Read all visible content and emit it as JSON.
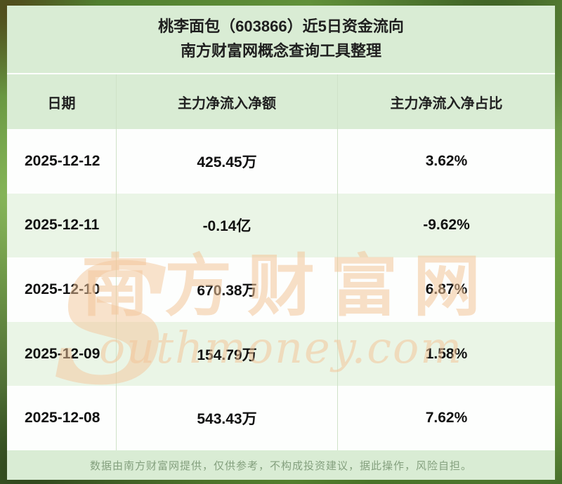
{
  "title": {
    "line1": "桃李面包（603866）近5日资金流向",
    "line2": "南方财富网概念查询工具整理"
  },
  "table": {
    "headers": {
      "date": "日期",
      "amount": "主力净流入净额",
      "ratio": "主力净流入净占比"
    },
    "rows": [
      {
        "date": "2025-12-12",
        "amount": "425.45万",
        "ratio": "3.62%"
      },
      {
        "date": "2025-12-11",
        "amount": "-0.14亿",
        "ratio": "-9.62%"
      },
      {
        "date": "2025-12-10",
        "amount": "670.38万",
        "ratio": "6.87%"
      },
      {
        "date": "2025-12-09",
        "amount": "154.79万",
        "ratio": "1.58%"
      },
      {
        "date": "2025-12-08",
        "amount": "543.43万",
        "ratio": "7.62%"
      }
    ]
  },
  "watermark": {
    "big_letter": "S",
    "cn_text": "南方财富网",
    "en_text": "outhmoney.com"
  },
  "footer": {
    "disclaimer": "数据由南方财富网提供，仅供参考，不构成投资建议，据此操作，风险自担。"
  },
  "colors": {
    "panel_green": "#d9ecd4",
    "row_alt_green": "#eaf5e6",
    "row_white": "#fdfefd",
    "watermark_orange": "#f3c599",
    "background_green": "#74a546",
    "footer_text": "#84a07e",
    "text_dark": "#111111"
  },
  "chart_data": {
    "type": "table",
    "title": "桃李面包（603866）近5日资金流向",
    "subtitle": "南方财富网概念查询工具整理",
    "columns": [
      "日期",
      "主力净流入净额",
      "主力净流入净占比"
    ],
    "rows": [
      [
        "2025-12-12",
        "425.45万",
        "3.62%"
      ],
      [
        "2025-12-11",
        "-0.14亿",
        "-9.62%"
      ],
      [
        "2025-12-10",
        "670.38万",
        "6.87%"
      ],
      [
        "2025-12-09",
        "154.79万",
        "1.58%"
      ],
      [
        "2025-12-08",
        "543.43万",
        "7.62%"
      ]
    ],
    "notes": {
      "net_inflow_values_wan": [
        425.45,
        -1400,
        670.38,
        154.79,
        543.43
      ],
      "net_inflow_ratio_pct": [
        3.62,
        -9.62,
        6.87,
        1.58,
        7.62
      ]
    }
  }
}
